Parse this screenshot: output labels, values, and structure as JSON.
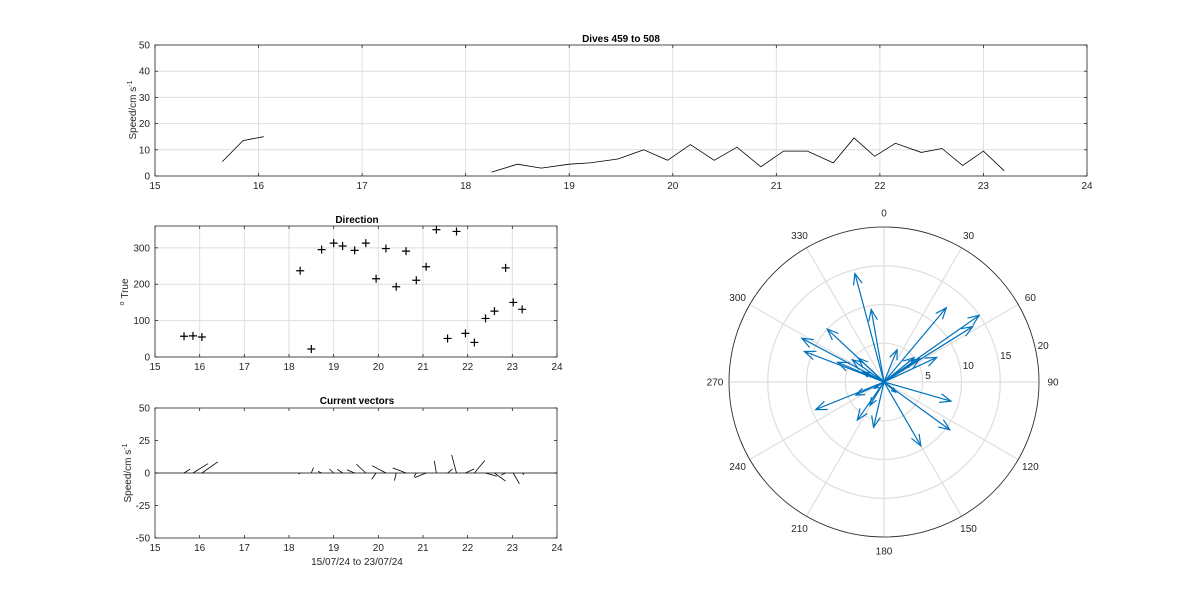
{
  "chart_data": [
    {
      "type": "line",
      "title": "Dives 459 to 508",
      "ylabel": "Speed/cm s",
      "ylabel_sup": "-1",
      "xlabel": "",
      "xlim": [
        15,
        24
      ],
      "ylim": [
        0,
        50
      ],
      "xticks": [
        "15",
        "16",
        "17",
        "18",
        "19",
        "20",
        "21",
        "22",
        "23",
        "24"
      ],
      "yticks": [
        "0",
        "10",
        "20",
        "30",
        "40",
        "50"
      ],
      "grid": true,
      "color": "#000000",
      "segments": [
        {
          "x": [
            15.65,
            15.85,
            16.05
          ],
          "y": [
            5.5,
            13.5,
            15
          ]
        },
        {
          "x": [
            18.25,
            18.5,
            18.73,
            19.0,
            19.2,
            19.47,
            19.72,
            19.95,
            20.17,
            20.4,
            20.62,
            20.85,
            21.07,
            21.3,
            21.55,
            21.75,
            21.95,
            22.15,
            22.4,
            22.6,
            22.8,
            23.0,
            23.2
          ],
          "y": [
            1.5,
            4.5,
            3,
            4.5,
            5,
            6.5,
            10,
            6,
            12,
            6,
            11,
            3.5,
            9.5,
            9.5,
            5,
            14.5,
            7.5,
            12.5,
            9,
            10.5,
            4,
            9.5,
            2
          ]
        }
      ]
    },
    {
      "type": "scatter",
      "title": "Direction",
      "ylabel": "True",
      "ylabel_sup": "o",
      "xlim": [
        15,
        24
      ],
      "ylim": [
        0,
        360
      ],
      "xticks": [
        "15",
        "16",
        "17",
        "18",
        "19",
        "20",
        "21",
        "22",
        "23",
        "24"
      ],
      "yticks": [
        "0",
        "100",
        "200",
        "300"
      ],
      "grid": true,
      "marker": "+",
      "x": [
        15.65,
        15.85,
        16.05,
        18.25,
        18.5,
        18.73,
        19.0,
        19.2,
        19.47,
        19.72,
        19.95,
        20.17,
        20.4,
        20.62,
        20.85,
        21.07,
        21.3,
        21.55,
        21.75,
        21.95,
        22.15,
        22.4,
        22.6,
        22.85,
        23.02,
        23.22
      ],
      "y": [
        57,
        58,
        55,
        237,
        22,
        295,
        313,
        305,
        293,
        313,
        215,
        298,
        193,
        291,
        211,
        248,
        350,
        51,
        345,
        65,
        40,
        106,
        126,
        245,
        150,
        131
      ]
    },
    {
      "type": "line",
      "title": "Current vectors",
      "ylabel": "Speed/cm s",
      "ylabel_sup": "-1",
      "xlabel": "15/07/24 to 23/07/24",
      "xlim": [
        15,
        24
      ],
      "ylim": [
        -50,
        50
      ],
      "xticks": [
        "15",
        "16",
        "17",
        "18",
        "19",
        "20",
        "21",
        "22",
        "23",
        "24"
      ],
      "yticks": [
        "-50",
        "-25",
        "0",
        "25",
        "50"
      ],
      "grid": false,
      "note": "stick plot: each stick starts at (time, 0) and points in the current direction",
      "speeds": [
        5.5,
        13.5,
        15,
        1.5,
        4.5,
        3,
        4.5,
        5,
        6.5,
        10,
        6,
        12,
        6,
        11,
        3.5,
        9.5,
        9.5,
        5,
        14.5,
        7.5,
        12.5,
        9,
        10.5,
        4,
        9.5,
        2
      ],
      "directions": [
        57,
        58,
        55,
        237,
        22,
        295,
        313,
        305,
        293,
        313,
        215,
        298,
        193,
        291,
        211,
        248,
        350,
        51,
        345,
        65,
        40,
        106,
        126,
        245,
        150,
        131
      ]
    },
    {
      "type": "polar-compass",
      "angle_ticks": [
        "0",
        "30",
        "60",
        "90",
        "120",
        "150",
        "180",
        "210",
        "240",
        "270",
        "300",
        "330"
      ],
      "radial_ticks": [
        "5",
        "10",
        "15",
        "20"
      ],
      "rmax": 20,
      "color": "#0072BD",
      "directions": [
        57,
        58,
        55,
        237,
        22,
        295,
        313,
        305,
        293,
        313,
        215,
        298,
        193,
        291,
        211,
        248,
        350,
        51,
        345,
        65,
        40,
        106,
        126,
        245,
        150,
        131
      ],
      "speeds": [
        5.5,
        13.5,
        15,
        1.5,
        4.5,
        3,
        4.5,
        5,
        6.5,
        10,
        6,
        12,
        6,
        11,
        3.5,
        9.5,
        9.5,
        5,
        14.5,
        7.5,
        12.5,
        9,
        10.5,
        4,
        9.5,
        2
      ]
    }
  ]
}
